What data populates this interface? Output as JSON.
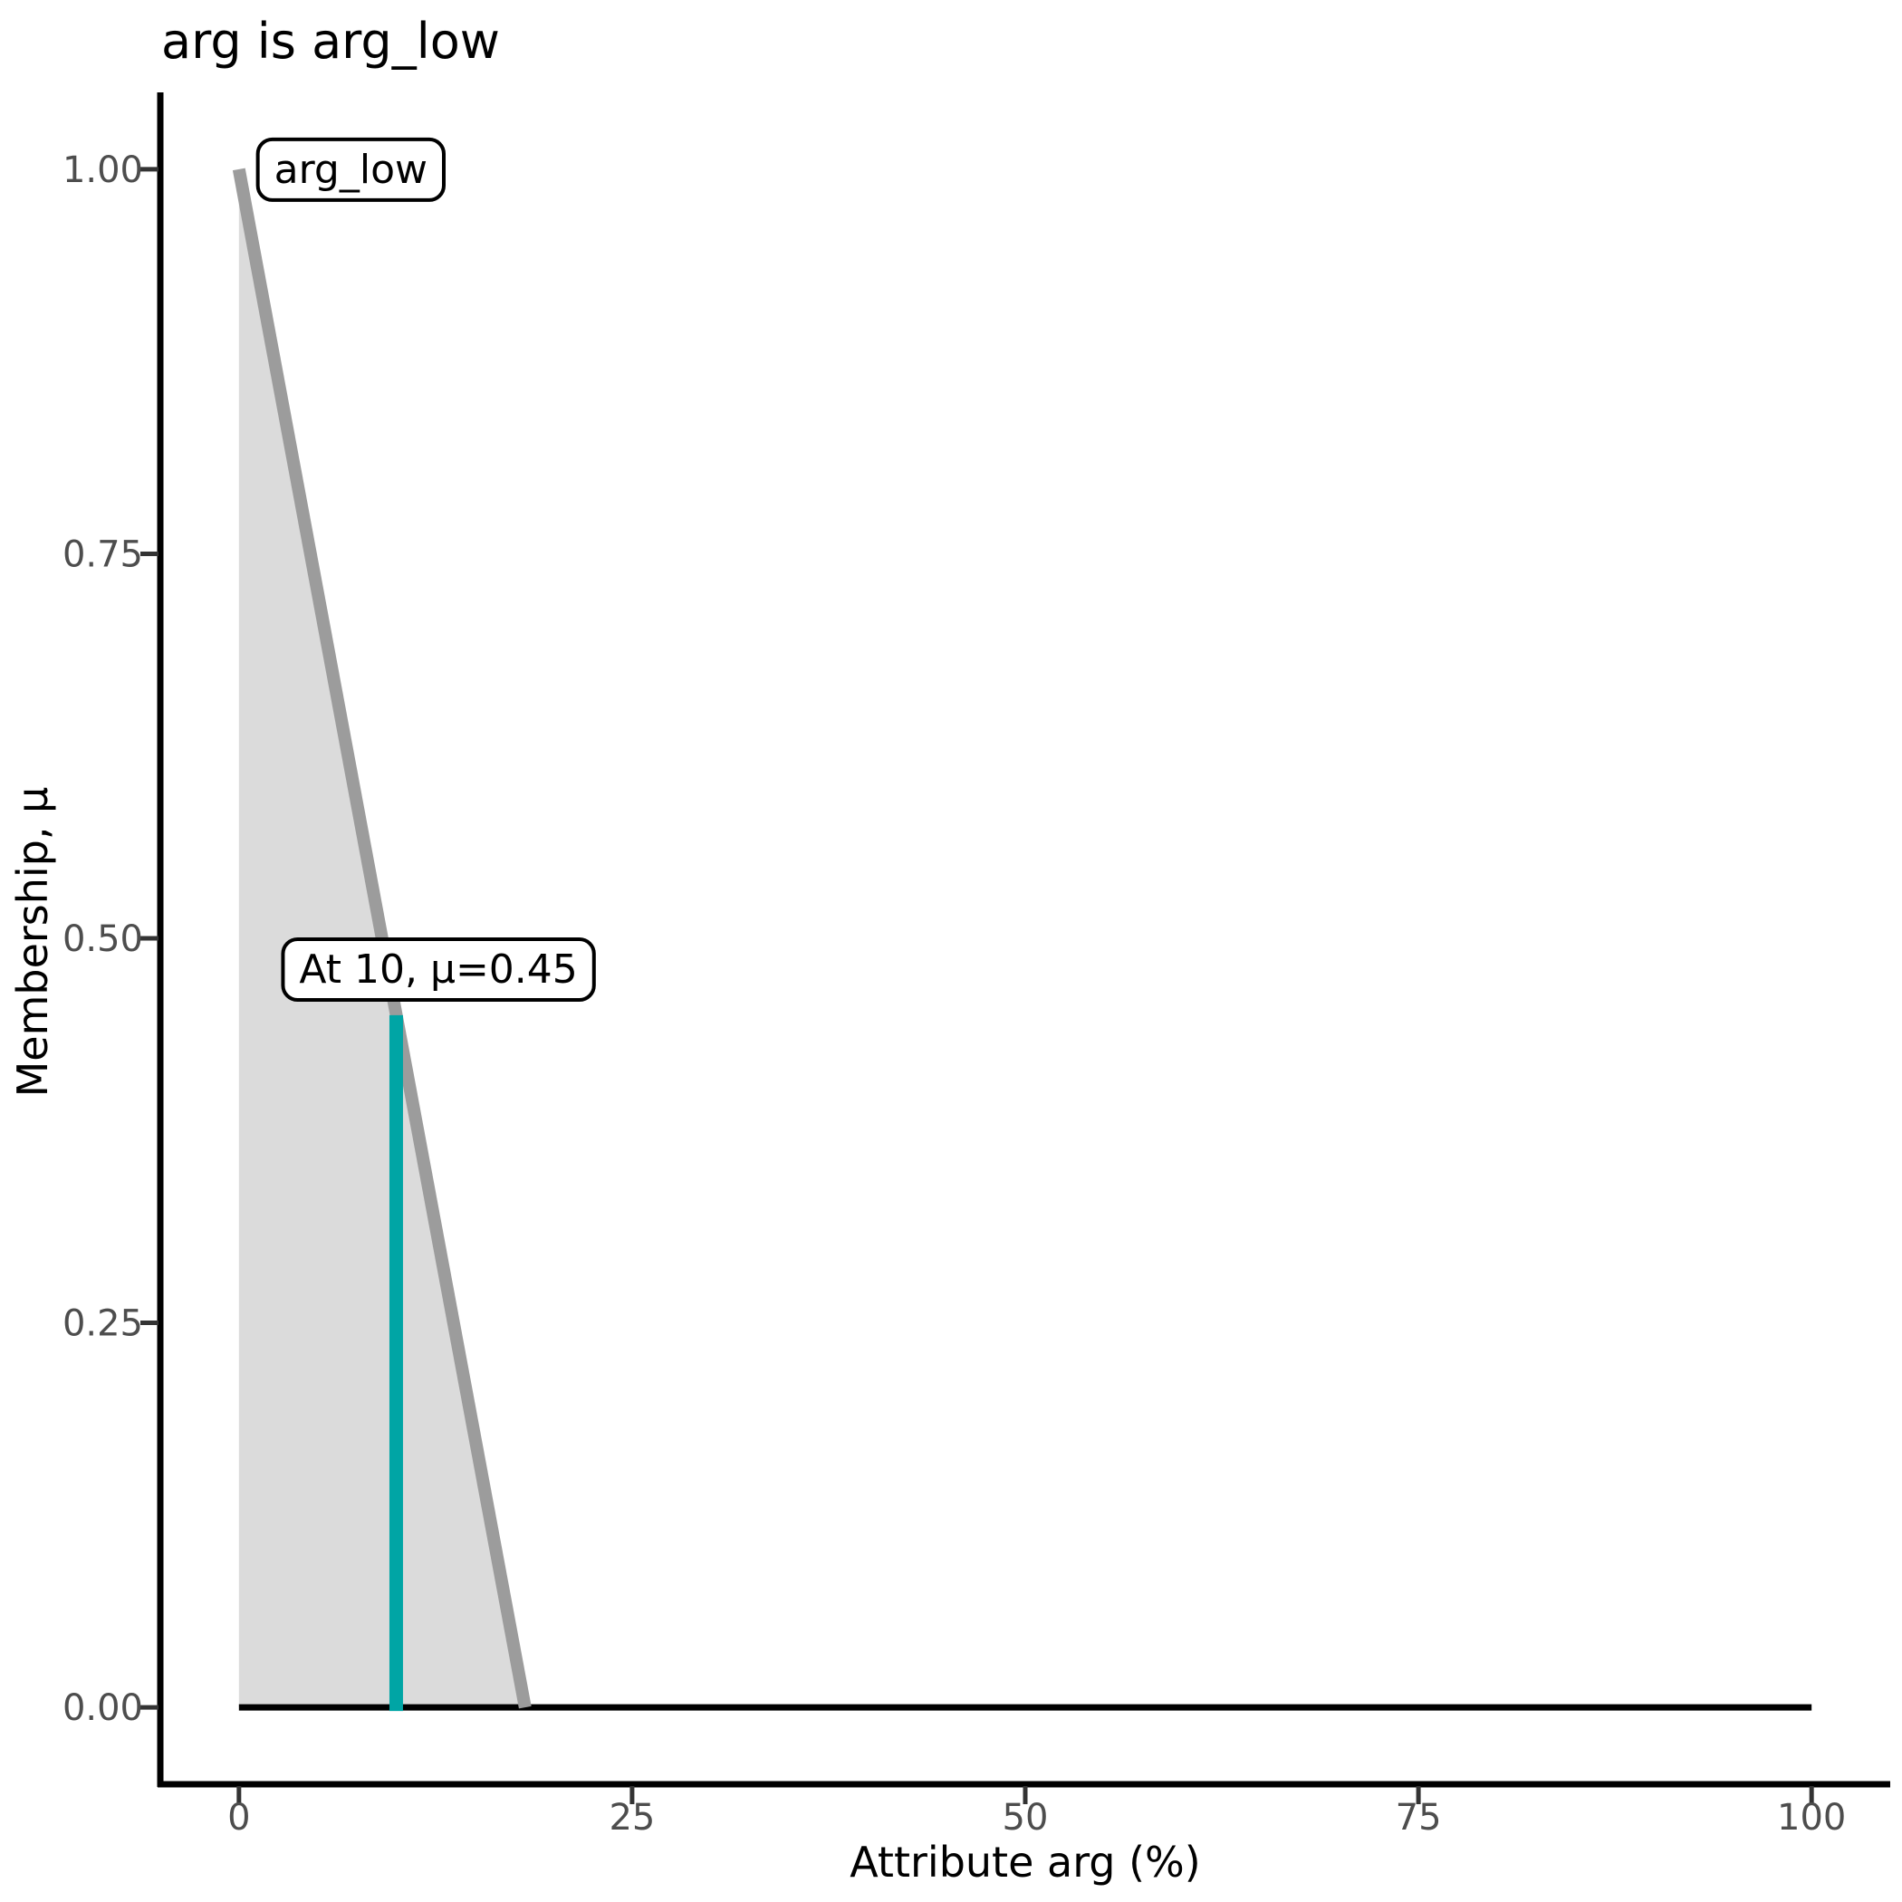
{
  "chart_data": {
    "type": "area",
    "title": "arg is arg_low",
    "xlabel": "Attribute arg (%)",
    "ylabel": "Membership, μ",
    "xlim": [
      0,
      100
    ],
    "ylim": [
      0,
      1
    ],
    "x_ticks": [
      0,
      25,
      50,
      75,
      100
    ],
    "y_ticks": [
      0,
      0.25,
      0.5,
      0.75,
      1
    ],
    "y_tick_labels": [
      "0.00",
      "0.25",
      "0.50",
      "0.75",
      "1.00"
    ],
    "grid": false,
    "legend": "none",
    "series": [
      {
        "name": "arg_low",
        "kind": "membership-function",
        "points": [
          [
            0,
            1
          ],
          [
            18.2,
            0
          ],
          [
            100,
            0
          ]
        ],
        "fill_color": "#DBDBDB",
        "line_color": "#9C9C9C",
        "baseline_color": "#000000"
      }
    ],
    "marker": {
      "x": 10,
      "mu": 0.45,
      "color": "#00A5A5"
    },
    "annotations": [
      {
        "id": "set-label",
        "text": "arg_low",
        "x": 1.2,
        "y": 1.0
      },
      {
        "id": "marker-label",
        "text": "At 10, μ=0.45",
        "x": 2.8,
        "y": 0.48
      }
    ],
    "axis_color": "#000000",
    "tick_mark_color": "#333333",
    "tick_text_color": "#4D4D4D"
  }
}
